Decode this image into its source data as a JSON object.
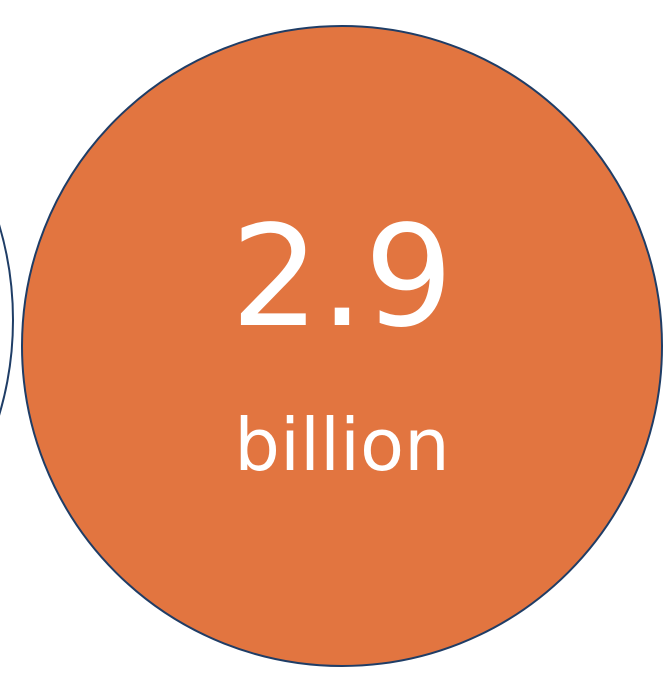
{
  "figure": {
    "circle_main": {
      "value_text": "2.9",
      "unit_text": "billion",
      "fill_color": "#E27540",
      "stroke_color": "#1F3D66"
    },
    "circle_left_partial": {
      "stroke_color": "#1F3D66"
    }
  }
}
